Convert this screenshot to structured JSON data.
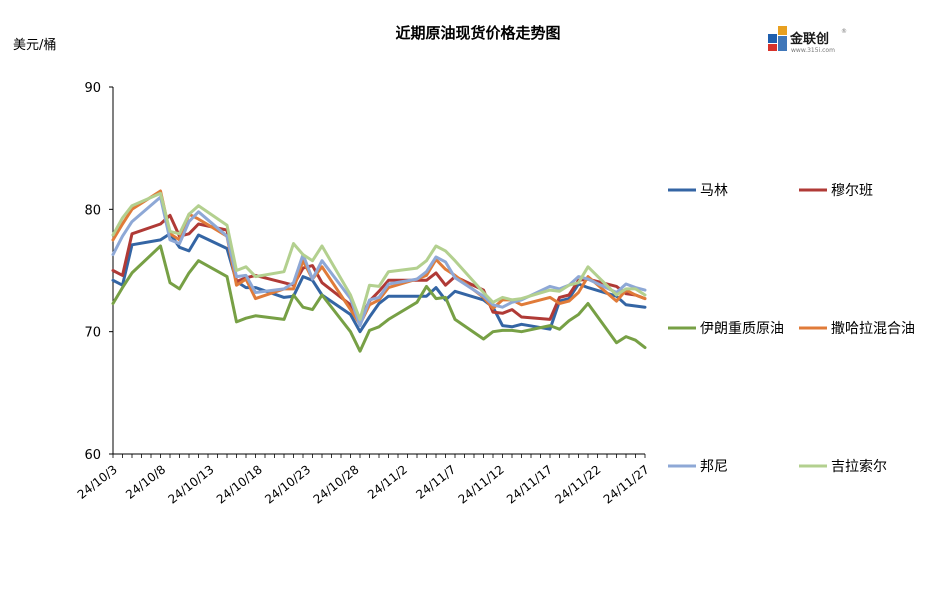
{
  "chart_data": {
    "type": "line",
    "title": "近期原油现货价格走势图",
    "ylabel": "美元/桶",
    "ylim": [
      60,
      90
    ],
    "yticks": [
      60,
      70,
      80,
      90
    ],
    "x_tick_labels": [
      "24/10/3",
      "24/10/8",
      "24/10/13",
      "24/10/18",
      "24/10/23",
      "24/10/28",
      "24/11/2",
      "24/11/7",
      "24/11/12",
      "24/11/17",
      "24/11/22",
      "24/11/27"
    ],
    "x_start": "2024-10-03",
    "x_end": "2024-11-28",
    "legend_position": "right",
    "series": [
      {
        "name": "马林",
        "color": "#3465a4",
        "dates": [
          "2024-10-03",
          "2024-10-04",
          "2024-10-05",
          "2024-10-08",
          "2024-10-09",
          "2024-10-10",
          "2024-10-11",
          "2024-10-12",
          "2024-10-15",
          "2024-10-16",
          "2024-10-17",
          "2024-10-18",
          "2024-10-21",
          "2024-10-22",
          "2024-10-23",
          "2024-10-24",
          "2024-10-25",
          "2024-10-28",
          "2024-10-29",
          "2024-10-30",
          "2024-10-31",
          "2024-11-01",
          "2024-11-04",
          "2024-11-05",
          "2024-11-06",
          "2024-11-07",
          "2024-11-08",
          "2024-11-11",
          "2024-11-12",
          "2024-11-13",
          "2024-11-14",
          "2024-11-15",
          "2024-11-18",
          "2024-11-19",
          "2024-11-20",
          "2024-11-21",
          "2024-11-22",
          "2024-11-25",
          "2024-11-26",
          "2024-11-27",
          "2024-11-28"
        ],
        "values": [
          74.2,
          73.8,
          77.1,
          77.5,
          78.0,
          76.9,
          76.6,
          77.9,
          76.8,
          74.1,
          73.6,
          73.6,
          72.8,
          72.9,
          74.5,
          74.2,
          73.0,
          71.4,
          70.0,
          71.2,
          72.3,
          72.9,
          72.9,
          72.9,
          73.6,
          72.6,
          73.3,
          72.6,
          72.0,
          70.5,
          70.4,
          70.6,
          70.2,
          72.5,
          72.7,
          73.9,
          73.6,
          72.9,
          72.2,
          72.1,
          72.0
        ]
      },
      {
        "name": "穆尔班",
        "color": "#b03a36",
        "dates": [
          "2024-10-03",
          "2024-10-04",
          "2024-10-05",
          "2024-10-08",
          "2024-10-09",
          "2024-10-10",
          "2024-10-11",
          "2024-10-12",
          "2024-10-15",
          "2024-10-16",
          "2024-10-17",
          "2024-10-18",
          "2024-10-21",
          "2024-10-22",
          "2024-10-23",
          "2024-10-24",
          "2024-10-25",
          "2024-10-28",
          "2024-10-29",
          "2024-10-30",
          "2024-10-31",
          "2024-11-01",
          "2024-11-04",
          "2024-11-05",
          "2024-11-06",
          "2024-11-07",
          "2024-11-08",
          "2024-11-11",
          "2024-11-12",
          "2024-11-13",
          "2024-11-14",
          "2024-11-15",
          "2024-11-18",
          "2024-11-19",
          "2024-11-20",
          "2024-11-21",
          "2024-11-22",
          "2024-11-25",
          "2024-11-26",
          "2024-11-27",
          "2024-11-28"
        ],
        "values": [
          75.0,
          74.6,
          78.0,
          78.8,
          79.5,
          77.8,
          78.0,
          78.8,
          78.3,
          74.1,
          74.4,
          74.6,
          74.0,
          73.8,
          75.2,
          75.4,
          74.0,
          72.2,
          71.0,
          72.5,
          73.3,
          74.2,
          74.2,
          74.2,
          74.8,
          73.8,
          74.5,
          73.4,
          71.6,
          71.5,
          71.8,
          71.2,
          71.0,
          72.8,
          73.0,
          74.2,
          74.3,
          73.7,
          73.1,
          73.0,
          72.7
        ]
      },
      {
        "name": "伊朗重质原油",
        "color": "#77a045",
        "dates": [
          "2024-10-03",
          "2024-10-04",
          "2024-10-05",
          "2024-10-08",
          "2024-10-09",
          "2024-10-10",
          "2024-10-11",
          "2024-10-12",
          "2024-10-15",
          "2024-10-16",
          "2024-10-17",
          "2024-10-18",
          "2024-10-21",
          "2024-10-22",
          "2024-10-23",
          "2024-10-24",
          "2024-10-25",
          "2024-10-28",
          "2024-10-29",
          "2024-10-30",
          "2024-10-31",
          "2024-11-01",
          "2024-11-04",
          "2024-11-05",
          "2024-11-06",
          "2024-11-07",
          "2024-11-08",
          "2024-11-11",
          "2024-11-12",
          "2024-11-13",
          "2024-11-14",
          "2024-11-15",
          "2024-11-18",
          "2024-11-19",
          "2024-11-20",
          "2024-11-21",
          "2024-11-22",
          "2024-11-25",
          "2024-11-26",
          "2024-11-27",
          "2024-11-28"
        ],
        "values": [
          72.3,
          73.6,
          74.8,
          77.0,
          74.0,
          73.5,
          74.8,
          75.8,
          74.5,
          70.8,
          71.1,
          71.3,
          71.0,
          73.0,
          72.0,
          71.8,
          73.0,
          70.0,
          68.4,
          70.1,
          70.4,
          71.0,
          72.4,
          73.7,
          72.7,
          72.8,
          71.0,
          69.4,
          70.0,
          70.1,
          70.1,
          70.0,
          70.5,
          70.2,
          70.9,
          71.4,
          72.3,
          69.1,
          69.6,
          69.3,
          68.7
        ]
      },
      {
        "name": "撒哈拉混合油",
        "color": "#e07b39",
        "dates": [
          "2024-10-03",
          "2024-10-04",
          "2024-10-05",
          "2024-10-08",
          "2024-10-09",
          "2024-10-10",
          "2024-10-11",
          "2024-10-12",
          "2024-10-15",
          "2024-10-16",
          "2024-10-17",
          "2024-10-18",
          "2024-10-21",
          "2024-10-22",
          "2024-10-23",
          "2024-10-24",
          "2024-10-25",
          "2024-10-28",
          "2024-10-29",
          "2024-10-30",
          "2024-10-31",
          "2024-11-01",
          "2024-11-04",
          "2024-11-05",
          "2024-11-06",
          "2024-11-07",
          "2024-11-08",
          "2024-11-11",
          "2024-11-12",
          "2024-11-13",
          "2024-11-14",
          "2024-11-15",
          "2024-11-18",
          "2024-11-19",
          "2024-11-20",
          "2024-11-21",
          "2024-11-22",
          "2024-11-25",
          "2024-11-26",
          "2024-11-27",
          "2024-11-28"
        ],
        "values": [
          77.5,
          78.8,
          80.0,
          81.5,
          78.0,
          77.5,
          79.6,
          79.2,
          77.8,
          73.8,
          74.3,
          72.7,
          73.5,
          73.5,
          75.8,
          74.3,
          75.3,
          71.8,
          70.6,
          72.2,
          72.6,
          73.6,
          74.3,
          74.6,
          75.9,
          75.1,
          74.6,
          72.8,
          71.9,
          72.6,
          72.6,
          72.2,
          72.8,
          72.3,
          72.5,
          73.2,
          74.5,
          72.5,
          73.4,
          73.0,
          72.7
        ]
      },
      {
        "name": "邦尼",
        "color": "#8ea8d6",
        "dates": [
          "2024-10-03",
          "2024-10-04",
          "2024-10-05",
          "2024-10-08",
          "2024-10-09",
          "2024-10-10",
          "2024-10-11",
          "2024-10-12",
          "2024-10-15",
          "2024-10-16",
          "2024-10-17",
          "2024-10-18",
          "2024-10-21",
          "2024-10-22",
          "2024-10-23",
          "2024-10-24",
          "2024-10-25",
          "2024-10-28",
          "2024-10-29",
          "2024-10-30",
          "2024-10-31",
          "2024-11-01",
          "2024-11-04",
          "2024-11-05",
          "2024-11-06",
          "2024-11-07",
          "2024-11-08",
          "2024-11-11",
          "2024-11-12",
          "2024-11-13",
          "2024-11-14",
          "2024-11-15",
          "2024-11-18",
          "2024-11-19",
          "2024-11-20",
          "2024-11-21",
          "2024-11-22",
          "2024-11-25",
          "2024-11-26",
          "2024-11-27",
          "2024-11-28"
        ],
        "values": [
          76.3,
          77.8,
          79.0,
          81.0,
          77.5,
          77.2,
          79.0,
          79.8,
          77.8,
          74.5,
          74.6,
          73.2,
          73.5,
          74.0,
          76.3,
          74.3,
          75.8,
          72.7,
          70.5,
          72.6,
          72.8,
          73.9,
          74.3,
          74.9,
          76.1,
          75.7,
          74.4,
          72.9,
          72.2,
          72.0,
          72.4,
          72.6,
          73.7,
          73.5,
          73.8,
          74.5,
          74.3,
          73.2,
          73.9,
          73.6,
          73.4
        ]
      },
      {
        "name": "吉拉索尔",
        "color": "#b3d08f",
        "dates": [
          "2024-10-03",
          "2024-10-04",
          "2024-10-05",
          "2024-10-08",
          "2024-10-09",
          "2024-10-10",
          "2024-10-11",
          "2024-10-12",
          "2024-10-15",
          "2024-10-16",
          "2024-10-17",
          "2024-10-18",
          "2024-10-21",
          "2024-10-22",
          "2024-10-23",
          "2024-10-24",
          "2024-10-25",
          "2024-10-28",
          "2024-10-29",
          "2024-10-30",
          "2024-10-31",
          "2024-11-01",
          "2024-11-04",
          "2024-11-05",
          "2024-11-06",
          "2024-11-07",
          "2024-11-08",
          "2024-11-11",
          "2024-11-12",
          "2024-11-13",
          "2024-11-14",
          "2024-11-15",
          "2024-11-18",
          "2024-11-19",
          "2024-11-20",
          "2024-11-21",
          "2024-11-22",
          "2024-11-25",
          "2024-11-26",
          "2024-11-27",
          "2024-11-28"
        ],
        "values": [
          77.9,
          79.3,
          80.3,
          81.3,
          78.2,
          78.0,
          79.6,
          80.3,
          78.7,
          75.0,
          75.3,
          74.5,
          74.9,
          77.2,
          76.3,
          75.8,
          77.0,
          73.0,
          71.0,
          73.8,
          73.7,
          74.9,
          75.2,
          75.8,
          77.0,
          76.6,
          75.8,
          73.2,
          72.4,
          72.8,
          72.6,
          72.7,
          73.4,
          73.3,
          73.8,
          74.0,
          75.3,
          73.0,
          73.5,
          73.5,
          73.0
        ]
      }
    ]
  },
  "logo": {
    "name": "金联创",
    "sub": "www.315i.com",
    "mark": "®"
  }
}
